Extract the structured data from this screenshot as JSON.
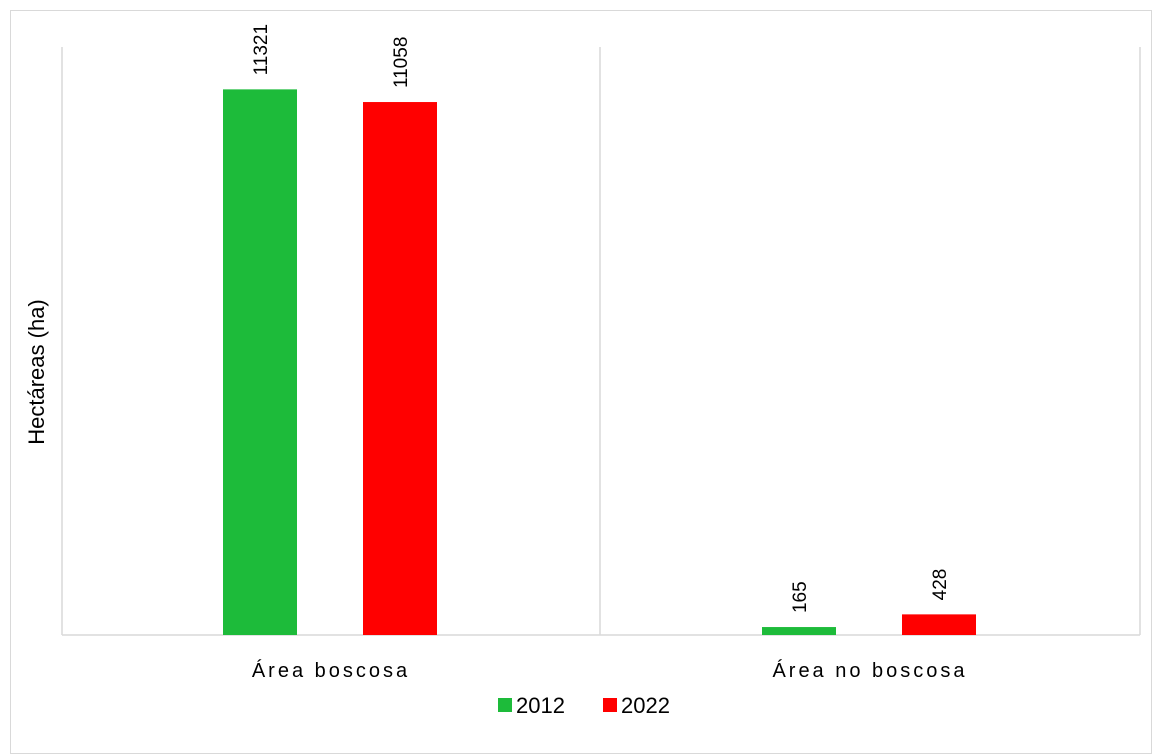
{
  "chart_data": {
    "type": "bar",
    "title": "",
    "xlabel": "",
    "ylabel": "Hectáreas (ha)",
    "categories": [
      "Área boscosa",
      "Área no boscosa"
    ],
    "series": [
      {
        "name": "2012",
        "color": "#1dbb3a",
        "values": [
          11321,
          165
        ]
      },
      {
        "name": "2022",
        "color": "#ff0000",
        "values": [
          11058,
          428
        ]
      }
    ],
    "data_labels": [
      [
        "11321",
        "165"
      ],
      [
        "11058",
        "428"
      ]
    ],
    "ylim": [
      0,
      12200
    ],
    "grid": false,
    "legend_position": "bottom"
  }
}
